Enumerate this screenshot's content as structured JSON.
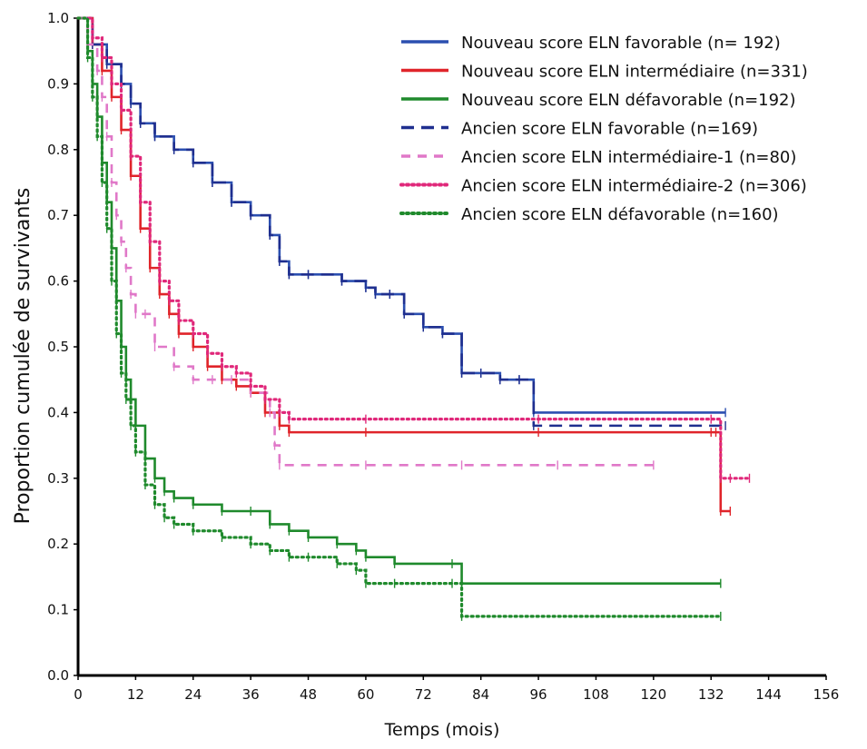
{
  "chart_data": {
    "type": "line",
    "subtype": "kaplan-meier",
    "xlabel": "Temps (mois)",
    "ylabel": "Proportion cumulée de survivants",
    "xlim": [
      0,
      156
    ],
    "ylim": [
      0,
      1.0
    ],
    "xticks": [
      "0",
      "12",
      "24",
      "36",
      "48",
      "60",
      "72",
      "84",
      "96",
      "108",
      "120",
      "132",
      "144",
      "156"
    ],
    "yticks": [
      "0.0",
      "0.1",
      "0.2",
      "0.3",
      "0.4",
      "0.5",
      "0.6",
      "0.7",
      "0.8",
      "0.9",
      "1.0"
    ],
    "grid": false,
    "legend_position": "top-right",
    "series": [
      {
        "name": "Nouveau score ELN favorable (n= 192)",
        "color": "#2b4fb0",
        "dash": "solid",
        "x": [
          0,
          3,
          6,
          9,
          11,
          13,
          16,
          20,
          24,
          28,
          32,
          36,
          40,
          42,
          44,
          48,
          55,
          60,
          62,
          65,
          68,
          72,
          76,
          80,
          84,
          88,
          92,
          95,
          135
        ],
        "y": [
          1.0,
          0.96,
          0.93,
          0.9,
          0.87,
          0.84,
          0.82,
          0.8,
          0.78,
          0.75,
          0.72,
          0.7,
          0.67,
          0.63,
          0.61,
          0.61,
          0.6,
          0.59,
          0.58,
          0.58,
          0.55,
          0.53,
          0.52,
          0.46,
          0.46,
          0.45,
          0.45,
          0.4,
          0.4
        ]
      },
      {
        "name": "Nouveau score ELN intermédiaire (n=331)",
        "color": "#e0242a",
        "dash": "solid",
        "x": [
          0,
          3,
          5,
          7,
          9,
          11,
          13,
          15,
          17,
          19,
          21,
          24,
          27,
          30,
          33,
          36,
          39,
          42,
          44,
          60,
          96,
          132,
          133,
          134,
          136
        ],
        "y": [
          1.0,
          0.96,
          0.92,
          0.88,
          0.83,
          0.76,
          0.68,
          0.62,
          0.58,
          0.55,
          0.52,
          0.5,
          0.47,
          0.45,
          0.44,
          0.43,
          0.4,
          0.38,
          0.37,
          0.37,
          0.37,
          0.37,
          0.37,
          0.25,
          0.25
        ]
      },
      {
        "name": "Nouveau score ELN défavorable (n=192)",
        "color": "#1f8a2c",
        "dash": "solid",
        "x": [
          0,
          2,
          3,
          4,
          5,
          6,
          7,
          8,
          9,
          10,
          11,
          12,
          14,
          16,
          18,
          20,
          24,
          30,
          36,
          40,
          44,
          48,
          54,
          58,
          60,
          66,
          78,
          80,
          134
        ],
        "y": [
          1.0,
          0.95,
          0.9,
          0.85,
          0.78,
          0.72,
          0.65,
          0.57,
          0.5,
          0.45,
          0.42,
          0.38,
          0.33,
          0.3,
          0.28,
          0.27,
          0.26,
          0.25,
          0.25,
          0.23,
          0.22,
          0.21,
          0.2,
          0.19,
          0.18,
          0.17,
          0.17,
          0.14,
          0.14
        ]
      },
      {
        "name": "Ancien score ELN favorable (n=169)",
        "color": "#1f2f8f",
        "dash": "long-dash",
        "x": [
          0,
          3,
          6,
          9,
          11,
          13,
          16,
          20,
          24,
          28,
          32,
          36,
          40,
          42,
          44,
          48,
          55,
          60,
          62,
          65,
          68,
          72,
          76,
          80,
          84,
          88,
          92,
          95,
          135
        ],
        "y": [
          1.0,
          0.96,
          0.93,
          0.9,
          0.87,
          0.84,
          0.82,
          0.8,
          0.78,
          0.75,
          0.72,
          0.7,
          0.67,
          0.63,
          0.61,
          0.61,
          0.6,
          0.59,
          0.58,
          0.58,
          0.55,
          0.53,
          0.52,
          0.46,
          0.46,
          0.45,
          0.45,
          0.38,
          0.38
        ]
      },
      {
        "name": "Ancien score ELN intermédiaire-1 (n=80)",
        "color": "#e078c8",
        "dash": "dash",
        "x": [
          0,
          2,
          4,
          5,
          6,
          7,
          8,
          9,
          10,
          11,
          12,
          14,
          16,
          20,
          24,
          28,
          32,
          36,
          40,
          41,
          42,
          60,
          80,
          100,
          120
        ],
        "y": [
          1.0,
          0.96,
          0.92,
          0.88,
          0.82,
          0.75,
          0.7,
          0.66,
          0.62,
          0.58,
          0.55,
          0.55,
          0.5,
          0.47,
          0.45,
          0.45,
          0.45,
          0.43,
          0.4,
          0.35,
          0.32,
          0.32,
          0.32,
          0.32,
          0.32
        ]
      },
      {
        "name": "Ancien score ELN intermédiaire-2 (n=306)",
        "color": "#e0287a",
        "dash": "dot",
        "x": [
          0,
          3,
          5,
          7,
          9,
          11,
          13,
          15,
          17,
          19,
          21,
          24,
          27,
          30,
          33,
          36,
          39,
          42,
          44,
          60,
          96,
          132,
          134,
          136,
          140
        ],
        "y": [
          1.0,
          0.97,
          0.94,
          0.9,
          0.86,
          0.79,
          0.72,
          0.66,
          0.6,
          0.57,
          0.54,
          0.52,
          0.49,
          0.47,
          0.46,
          0.44,
          0.42,
          0.4,
          0.39,
          0.39,
          0.39,
          0.39,
          0.3,
          0.3,
          0.3
        ]
      },
      {
        "name": "Ancien score ELN défavorable (n=160)",
        "color": "#1f8a2c",
        "dash": "dot",
        "x": [
          0,
          2,
          3,
          4,
          5,
          6,
          7,
          8,
          9,
          10,
          11,
          12,
          14,
          16,
          18,
          20,
          24,
          30,
          36,
          40,
          44,
          48,
          54,
          58,
          60,
          66,
          78,
          80,
          134
        ],
        "y": [
          1.0,
          0.94,
          0.88,
          0.82,
          0.75,
          0.68,
          0.6,
          0.52,
          0.46,
          0.42,
          0.38,
          0.34,
          0.29,
          0.26,
          0.24,
          0.23,
          0.22,
          0.21,
          0.2,
          0.19,
          0.18,
          0.18,
          0.17,
          0.16,
          0.14,
          0.14,
          0.14,
          0.09,
          0.09
        ]
      }
    ]
  }
}
